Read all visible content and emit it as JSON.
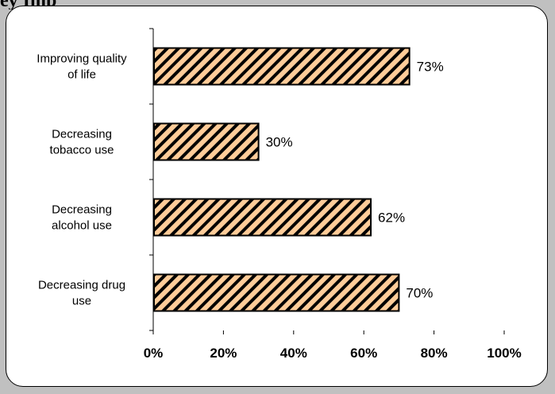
{
  "page": {
    "top_title_fragment": "ey Imp",
    "background_color": "#c0c0c0",
    "panel_color": "#ffffff"
  },
  "chart_data": {
    "type": "bar",
    "orientation": "horizontal",
    "categories": [
      [
        "Improving quality",
        "of life"
      ],
      [
        "Decreasing",
        "tobacco use"
      ],
      [
        "Decreasing",
        "alcohol use"
      ],
      [
        "Decreasing drug",
        "use"
      ]
    ],
    "values": [
      73,
      30,
      62,
      70
    ],
    "value_labels": [
      "73%",
      "30%",
      "62%",
      "70%"
    ],
    "xlim": [
      0,
      100
    ],
    "xticks": [
      0,
      20,
      40,
      60,
      80,
      100
    ],
    "xtick_labels": [
      "0%",
      "20%",
      "40%",
      "60%",
      "80%",
      "100%"
    ],
    "title": "",
    "xlabel": "",
    "ylabel": "",
    "grid": false,
    "legend": "none",
    "bar_fill": "#ffcc99",
    "bar_pattern": "diagonal-hatch",
    "hatch_color": "#000000"
  }
}
